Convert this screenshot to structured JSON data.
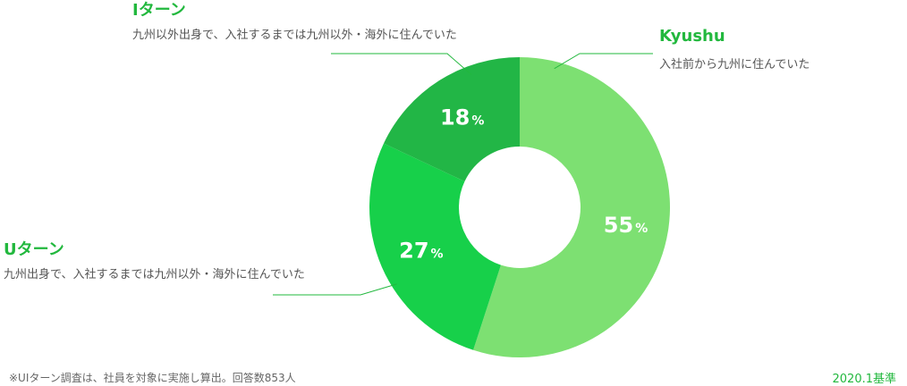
{
  "chart_data": {
    "type": "pie",
    "categories": [
      "Kyushu",
      "Uターン",
      "Iターン"
    ],
    "values": [
      55,
      27,
      18
    ],
    "value_suffix": "%",
    "descriptions": [
      "入社前から九州に住んでいた",
      "九州出身で、入社するまでは九州以外・海外に住んでいた",
      "九州以外出身で、入社するまでは九州以外・海外に住んでいた"
    ],
    "colors": [
      "#7de072",
      "#17d04a",
      "#22b646"
    ],
    "label_color": "#22b83e",
    "legend": "none",
    "note": "※UIターン調査は、社員を対象に実施し算出。回答数853人",
    "date_label": "2020.1基準"
  }
}
